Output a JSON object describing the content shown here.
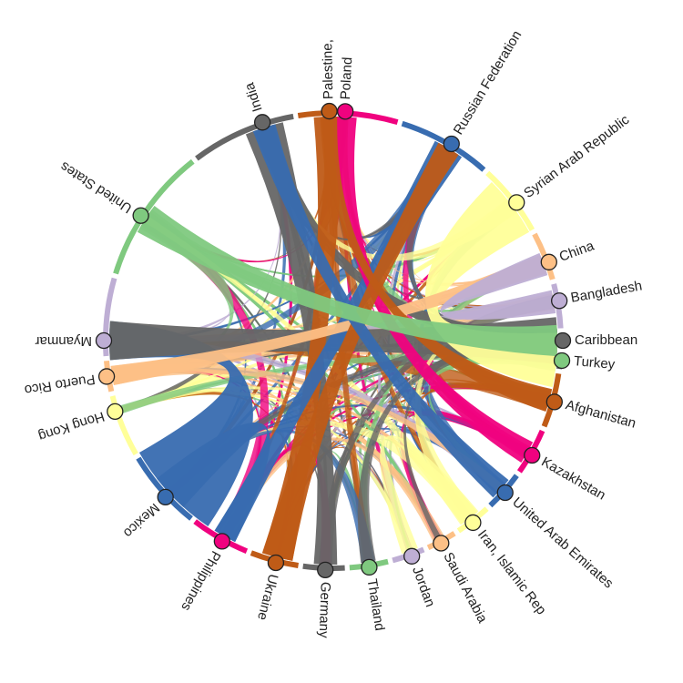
{
  "chart_data": {
    "type": "chord",
    "nodes": [
      {
        "name": "Caribbean",
        "color": "#666666"
      },
      {
        "name": "Afghanistan",
        "color": "#bf5b17"
      },
      {
        "name": "Kazakhstan",
        "color": "#f0027f"
      },
      {
        "name": "United Arab Emirates",
        "color": "#386cb0"
      },
      {
        "name": "Iran, Islamic Rep",
        "color": "#ffff99"
      },
      {
        "name": "Saudi Arabia",
        "color": "#fdc086"
      },
      {
        "name": "Jordan",
        "color": "#beaed4"
      },
      {
        "name": "Thailand",
        "color": "#7fc97f"
      },
      {
        "name": "Germany",
        "color": "#666666"
      },
      {
        "name": "Ukraine",
        "color": "#bf5b17"
      },
      {
        "name": "Philippines",
        "color": "#f0027f"
      },
      {
        "name": "Mexico",
        "color": "#386cb0"
      },
      {
        "name": "Hong Kong",
        "color": "#ffff99"
      },
      {
        "name": "Puerto Rico",
        "color": "#fdc086"
      },
      {
        "name": "Myanmar",
        "color": "#beaed4"
      },
      {
        "name": "United States",
        "color": "#7fc97f"
      },
      {
        "name": "India",
        "color": "#666666"
      },
      {
        "name": "Palestine,",
        "color": "#bf5b17"
      },
      {
        "name": "Poland",
        "color": "#f0027f"
      },
      {
        "name": "Russian Federation",
        "color": "#386cb0"
      },
      {
        "name": "Syrian Arab Republic",
        "color": "#ffff99"
      },
      {
        "name": "China",
        "color": "#fdc086"
      },
      {
        "name": "Bangladesh",
        "color": "#beaed4"
      },
      {
        "name": "Turkey",
        "color": "#7fc97f"
      }
    ]
  }
}
